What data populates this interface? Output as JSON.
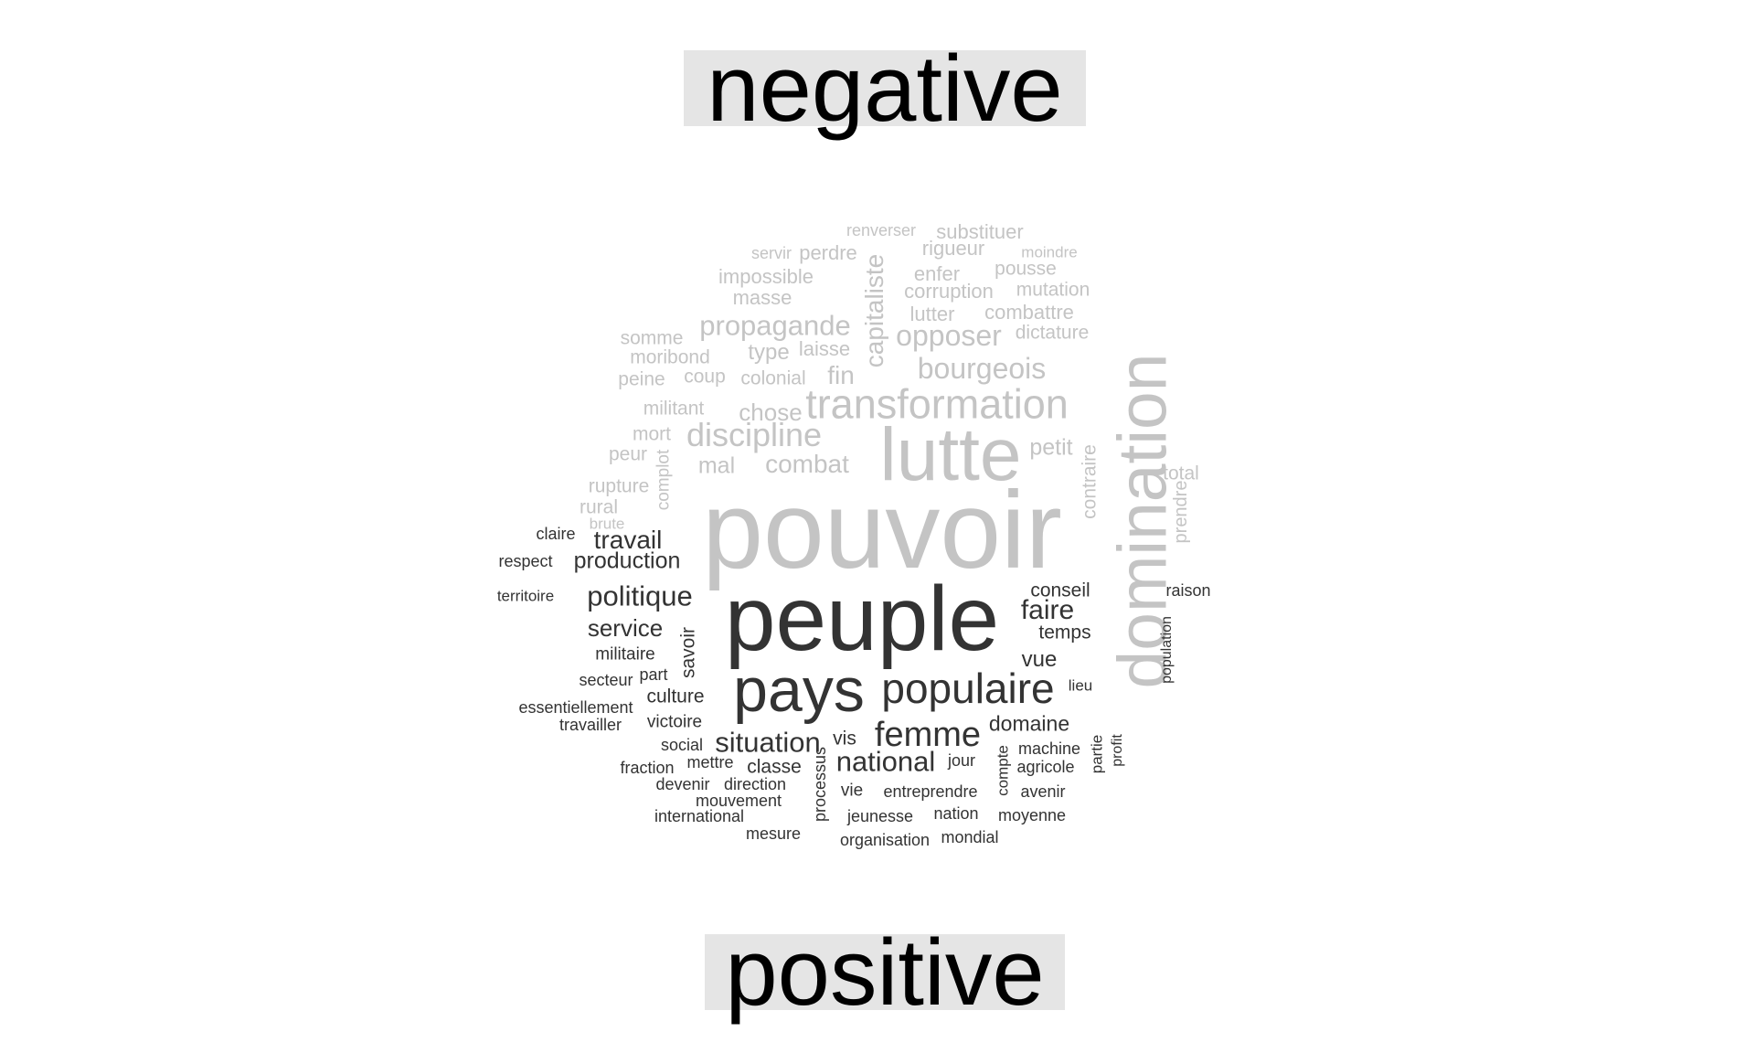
{
  "labels": {
    "negative": "negative",
    "positive": "positive"
  },
  "colors": {
    "negative_words": "#c4c4c4",
    "positive_words": "#333333",
    "label_background": "#e5e5e5",
    "label_text": "#000000"
  },
  "negative_words": [
    "pouvoir",
    "domination",
    "lutte",
    "transformation",
    "discipline",
    "opposer",
    "propagande",
    "bourgeois",
    "capitaliste",
    "combat",
    "fin",
    "chose",
    "mal",
    "petit",
    "contraire",
    "type",
    "laisse",
    "colonial",
    "coup",
    "total",
    "prendre",
    "substituer",
    "rigueur",
    "pousse",
    "mutation",
    "corruption",
    "enfer",
    "impossible",
    "masse",
    "combattre",
    "dictature",
    "lutter",
    "somme",
    "moribond",
    "peine",
    "militant",
    "mort",
    "peur",
    "complot",
    "rupture",
    "rural",
    "brute",
    "perdre",
    "servir",
    "renverser",
    "moindre"
  ],
  "positive_words": [
    "peuple",
    "pays",
    "populaire",
    "femme",
    "situation",
    "national",
    "politique",
    "travail",
    "production",
    "faire",
    "service",
    "conseil",
    "temps",
    "vue",
    "domaine",
    "savoir",
    "culture",
    "militaire",
    "secteur",
    "part",
    "essentiellement",
    "travailler",
    "victoire",
    "vis",
    "social",
    "mettre",
    "classe",
    "fraction",
    "devenir",
    "direction",
    "mouvement",
    "international",
    "mesure",
    "processus",
    "vie",
    "entreprendre",
    "jeunesse",
    "nation",
    "organisation",
    "mondial",
    "moyenne",
    "avenir",
    "jour",
    "compte",
    "machine",
    "agricole",
    "partie",
    "profit",
    "lieu",
    "population",
    "raison",
    "claire",
    "respect",
    "territoire"
  ]
}
